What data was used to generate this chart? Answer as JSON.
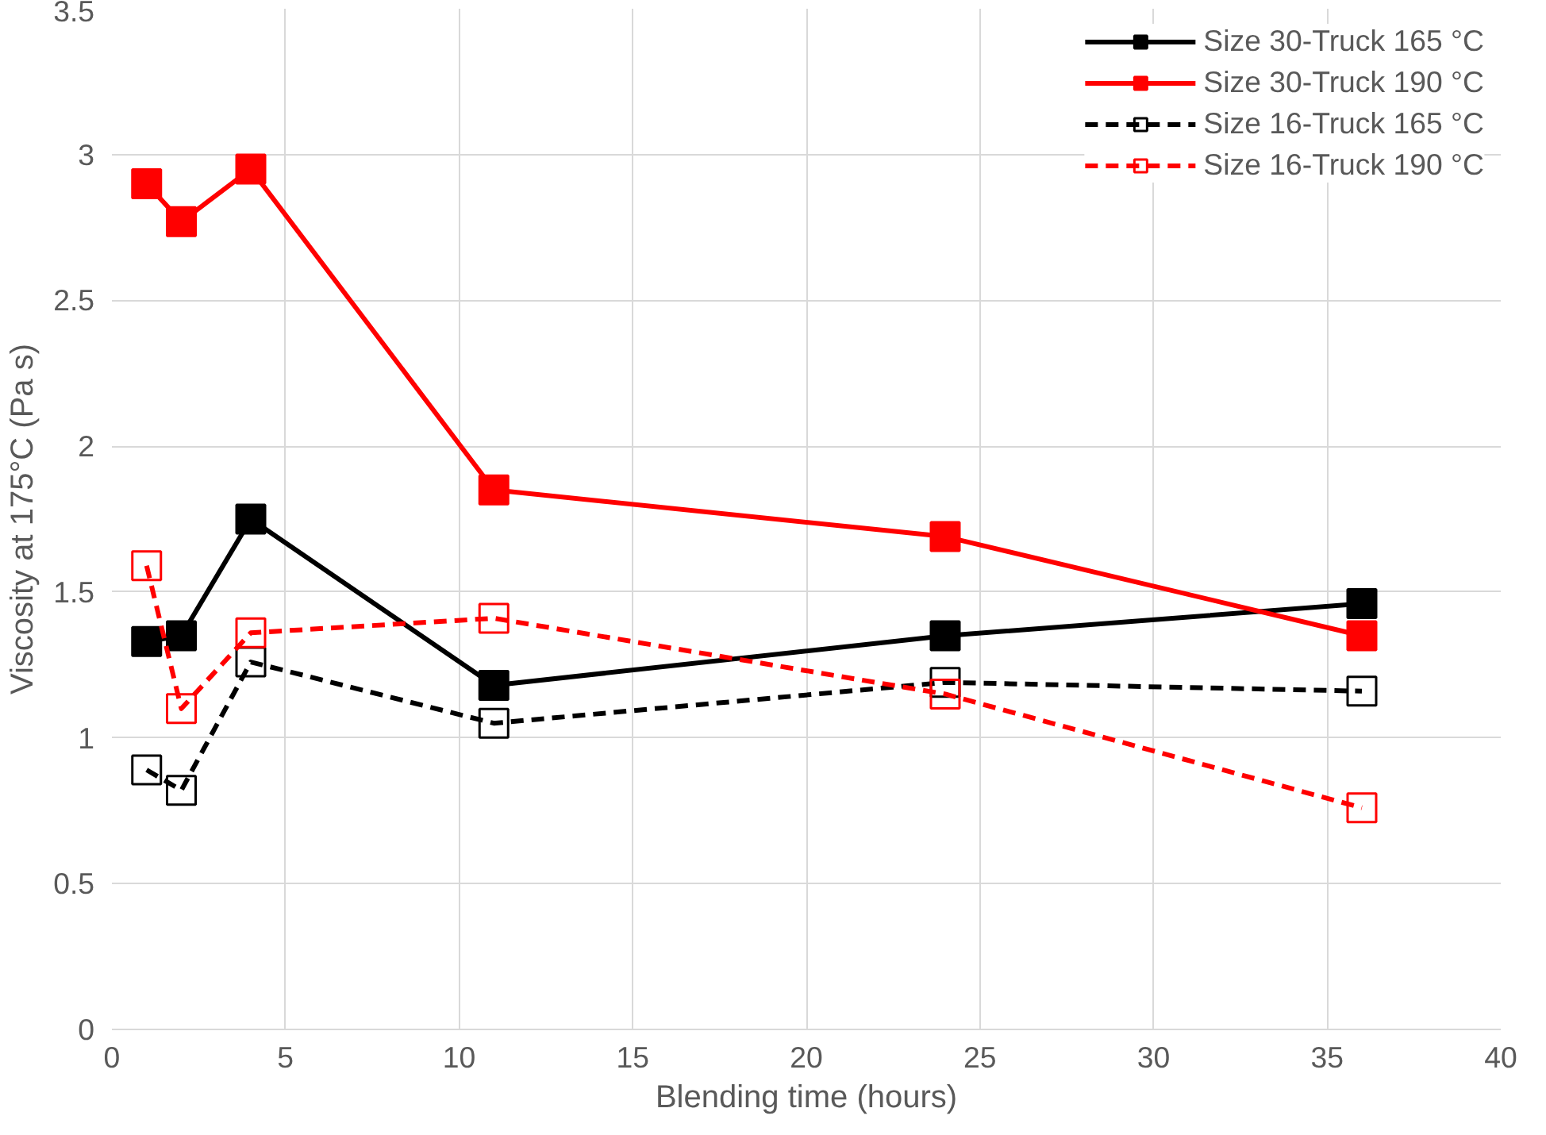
{
  "chart_data": {
    "type": "line",
    "xlabel": "Blending time (hours)",
    "ylabel": "Viscosity at 175°C (Pa s)",
    "x": [
      1,
      2,
      4,
      11,
      24,
      36
    ],
    "xlim": [
      0,
      40
    ],
    "xticks": [
      0,
      5,
      10,
      15,
      20,
      25,
      30,
      35,
      40
    ],
    "ylim": [
      0,
      3.5
    ],
    "yticks": [
      0,
      0.5,
      1,
      1.5,
      2,
      2.5,
      3,
      3.5
    ],
    "grid": true,
    "legend": "top right",
    "marker": "square",
    "series": [
      {
        "name": "Size 30-Truck 165 °C",
        "color": "#000000",
        "line_style": "solid",
        "values": [
          1.33,
          1.35,
          1.75,
          1.18,
          1.35,
          1.46
        ]
      },
      {
        "name": "Size 30-Truck 190 °C",
        "color": "#ff0000",
        "line_style": "solid",
        "values": [
          2.9,
          2.77,
          2.95,
          1.85,
          1.69,
          1.35
        ]
      },
      {
        "name": "Size 16-Truck 165 °C",
        "color": "#000000",
        "line_style": "dashed",
        "values": [
          0.89,
          0.82,
          1.26,
          1.05,
          1.19,
          1.16
        ]
      },
      {
        "name": "Size 16-Truck 190 °C",
        "color": "#ff0000",
        "line_style": "dashed",
        "values": [
          1.59,
          1.1,
          1.36,
          1.41,
          1.15,
          0.76
        ]
      }
    ]
  }
}
